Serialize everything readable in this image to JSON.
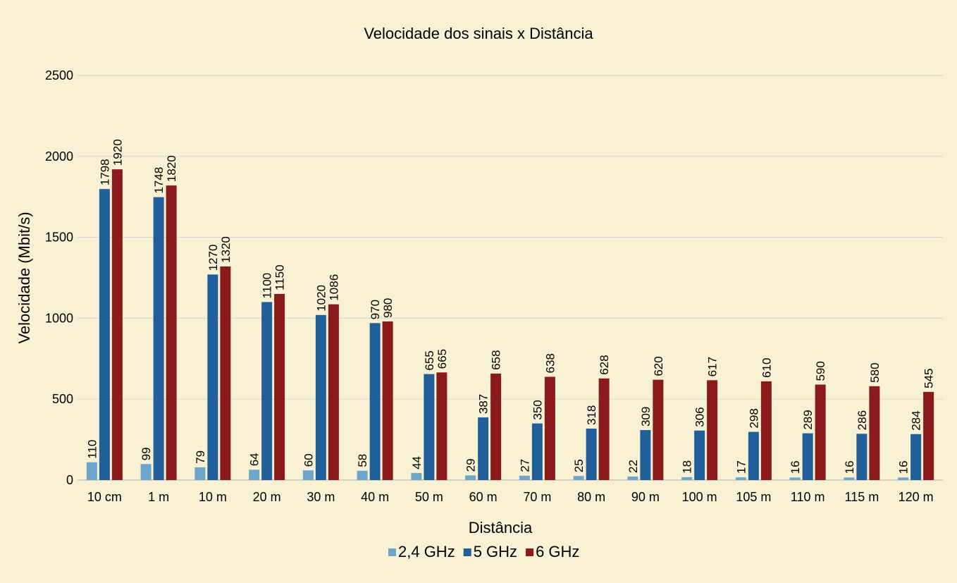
{
  "chart_data": {
    "type": "bar",
    "title": "Velocidade dos sinais x Distância",
    "xlabel": "Distância",
    "ylabel": "Velocidade (Mbit/s)",
    "ylim": [
      0,
      2500
    ],
    "yticks": [
      0,
      500,
      1000,
      1500,
      2000,
      2500
    ],
    "grid": true,
    "legend_position": "bottom",
    "categories": [
      "10 cm",
      "1 m",
      "10 m",
      "20 m",
      "30 m",
      "40 m",
      "50 m",
      "60 m",
      "70 m",
      "80 m",
      "90 m",
      "100 m",
      "105 m",
      "110 m",
      "115 m",
      "120 m"
    ],
    "series": [
      {
        "name": "2,4 GHz",
        "color": "#6ea6cb",
        "values": [
          110,
          99,
          79,
          64,
          60,
          58,
          44,
          29,
          27,
          25,
          22,
          18,
          17,
          16,
          16,
          16
        ]
      },
      {
        "name": "5 GHz",
        "color": "#215f9a",
        "values": [
          1798,
          1748,
          1270,
          1100,
          1020,
          970,
          655,
          387,
          350,
          318,
          309,
          306,
          298,
          289,
          286,
          284
        ]
      },
      {
        "name": "6 GHz",
        "color": "#8b1a1a",
        "values": [
          1920,
          1820,
          1320,
          1150,
          1086,
          980,
          665,
          658,
          638,
          628,
          620,
          617,
          610,
          590,
          580,
          545
        ]
      }
    ]
  },
  "colors": {
    "background": "#f8f1d3",
    "gridline": "#d9d9d9",
    "axis": "#bfbfbf"
  }
}
